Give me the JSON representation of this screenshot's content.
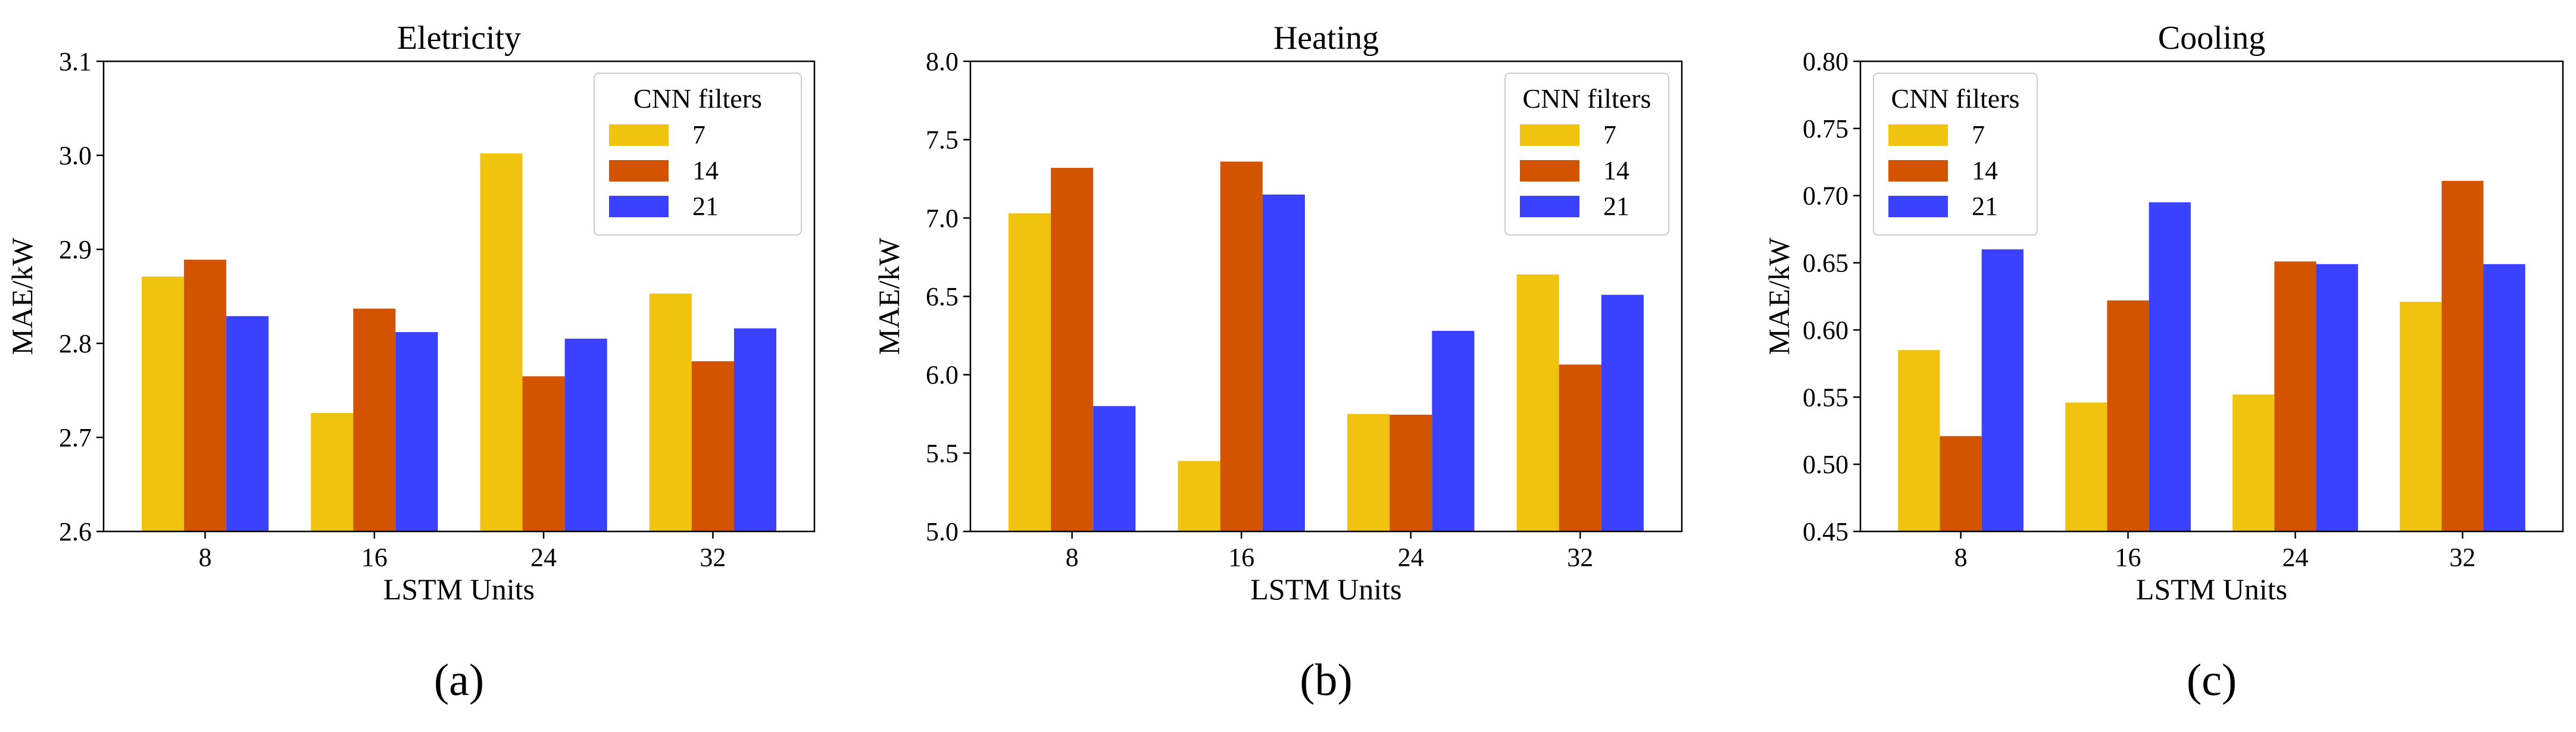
{
  "figure": {
    "panel_labels": [
      "(a)",
      "(b)",
      "(c)"
    ]
  },
  "colors": {
    "7": "#F0C30F",
    "14": "#D35400",
    "21": "#3B42FF",
    "axis": "#000000",
    "legend_border": "#cccccc"
  },
  "chart_data": [
    {
      "type": "bar",
      "title": "Eletricity",
      "xlabel": "LSTM Units",
      "ylabel": "MAE/kW",
      "categories": [
        "8",
        "16",
        "24",
        "32"
      ],
      "ylim": [
        2.6,
        3.1
      ],
      "yticks": [
        2.6,
        2.7,
        2.8,
        2.9,
        3.0,
        3.1
      ],
      "ytick_labels": [
        "2.6",
        "2.7",
        "2.8",
        "2.9",
        "3.0",
        "3.1"
      ],
      "legend": {
        "title": "CNN filters",
        "position": "top-right"
      },
      "series": [
        {
          "name": "7",
          "values": [
            2.871,
            2.726,
            3.002,
            2.853
          ]
        },
        {
          "name": "14",
          "values": [
            2.889,
            2.837,
            2.765,
            2.781
          ]
        },
        {
          "name": "21",
          "values": [
            2.829,
            2.812,
            2.805,
            2.816
          ]
        }
      ]
    },
    {
      "type": "bar",
      "title": "Heating",
      "xlabel": "LSTM Units",
      "ylabel": "MAE/kW",
      "categories": [
        "8",
        "16",
        "24",
        "32"
      ],
      "ylim": [
        5.0,
        8.0
      ],
      "yticks": [
        5.0,
        5.5,
        6.0,
        6.5,
        7.0,
        7.5,
        8.0
      ],
      "ytick_labels": [
        "5.0",
        "5.5",
        "6.0",
        "6.5",
        "7.0",
        "7.5",
        "8.0"
      ],
      "legend": {
        "title": "CNN filters",
        "position": "top-right"
      },
      "series": [
        {
          "name": "7",
          "values": [
            7.03,
            5.45,
            5.75,
            6.64
          ]
        },
        {
          "name": "14",
          "values": [
            7.32,
            7.36,
            5.745,
            6.065
          ]
        },
        {
          "name": "21",
          "values": [
            5.8,
            7.15,
            6.28,
            6.51
          ]
        }
      ]
    },
    {
      "type": "bar",
      "title": "Cooling",
      "xlabel": "LSTM Units",
      "ylabel": "MAE/kW",
      "categories": [
        "8",
        "16",
        "24",
        "32"
      ],
      "ylim": [
        0.45,
        0.8
      ],
      "yticks": [
        0.45,
        0.5,
        0.55,
        0.6,
        0.65,
        0.7,
        0.75,
        0.8
      ],
      "ytick_labels": [
        "0.45",
        "0.50",
        "0.55",
        "0.60",
        "0.65",
        "0.70",
        "0.75",
        "0.80"
      ],
      "legend": {
        "title": "CNN filters",
        "position": "top-left"
      },
      "series": [
        {
          "name": "7",
          "values": [
            0.585,
            0.546,
            0.552,
            0.621
          ]
        },
        {
          "name": "14",
          "values": [
            0.521,
            0.622,
            0.651,
            0.711
          ]
        },
        {
          "name": "21",
          "values": [
            0.66,
            0.695,
            0.649,
            0.649
          ]
        }
      ]
    }
  ]
}
